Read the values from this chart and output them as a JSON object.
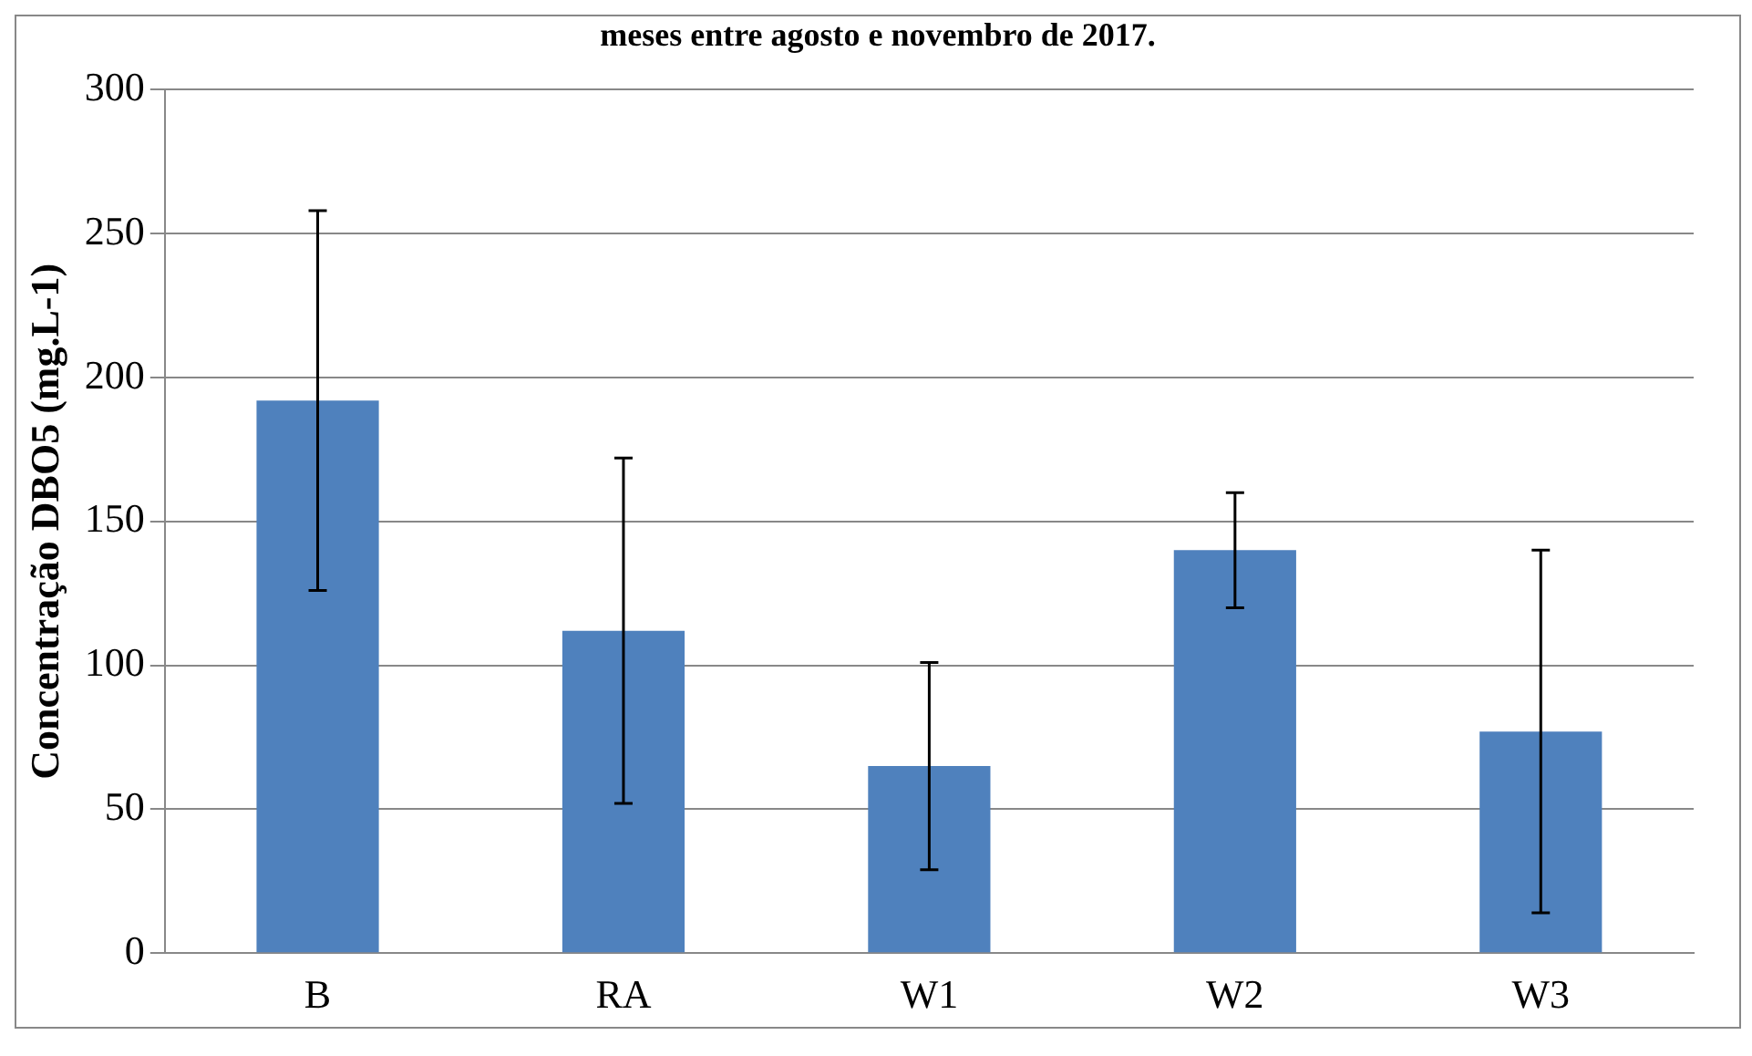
{
  "chart_data": {
    "type": "bar",
    "title": "meses entre agosto e novembro de 2017.",
    "ylabel": "Concentração DBO5 (mg.L-1)",
    "categories": [
      "B",
      "RA",
      "W1",
      "W2",
      "W3"
    ],
    "values": [
      192,
      112,
      65,
      140,
      77
    ],
    "errors": [
      66,
      60,
      36,
      20,
      63
    ],
    "color": "#4f81bd",
    "ylim": [
      0,
      300
    ],
    "yticks": [
      0,
      50,
      100,
      150,
      200,
      250,
      300
    ],
    "grid": "y"
  }
}
